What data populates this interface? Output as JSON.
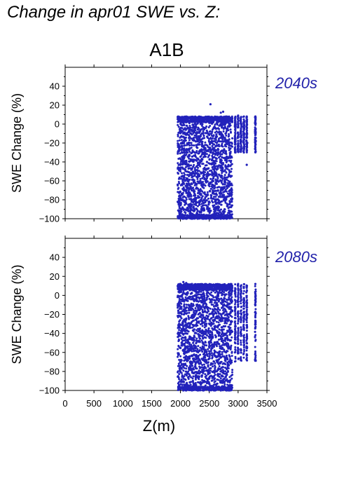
{
  "title": "Change in apr01 SWE vs. Z:",
  "scenario": "A1B",
  "colors": {
    "points": "#2222bb",
    "period_label": "#2222aa",
    "axis": "#000000"
  },
  "chart_data": [
    {
      "type": "scatter",
      "period": "2040s",
      "ylabel": "SWE Change (%)",
      "xlim": [
        0,
        3500
      ],
      "ylim": [
        -100,
        60
      ],
      "yticks": [
        -100,
        -80,
        -60,
        -40,
        -20,
        0,
        20,
        40
      ],
      "x_range_of_points": [
        1950,
        3300
      ],
      "points": [
        [
          1960,
          8
        ],
        [
          1980,
          7
        ],
        [
          2000,
          6
        ],
        [
          2020,
          5
        ],
        [
          2050,
          7
        ],
        [
          2100,
          8
        ],
        [
          2200,
          6
        ],
        [
          2300,
          7
        ],
        [
          2400,
          6
        ],
        [
          2500,
          5
        ],
        [
          2600,
          6
        ],
        [
          2700,
          12
        ],
        [
          2800,
          8
        ],
        [
          2900,
          6
        ],
        [
          3000,
          9
        ],
        [
          3100,
          8
        ],
        [
          3150,
          8
        ],
        [
          3300,
          8
        ],
        [
          2520,
          21
        ],
        [
          2740,
          13
        ],
        [
          1970,
          -72
        ],
        [
          1990,
          -80
        ],
        [
          2010,
          -90
        ],
        [
          2040,
          -100
        ],
        [
          2100,
          -100
        ],
        [
          2200,
          -100
        ],
        [
          2300,
          -100
        ],
        [
          2400,
          -100
        ],
        [
          2500,
          -100
        ],
        [
          2600,
          -100
        ],
        [
          2700,
          -100
        ],
        [
          2800,
          -100
        ],
        [
          2850,
          -98
        ],
        [
          2000,
          -48
        ],
        [
          2030,
          -35
        ],
        [
          2060,
          -20
        ],
        [
          2080,
          -60
        ],
        [
          2120,
          -30
        ],
        [
          2150,
          -75
        ],
        [
          2180,
          -10
        ],
        [
          2220,
          -45
        ],
        [
          2260,
          -82
        ],
        [
          2290,
          -25
        ],
        [
          2330,
          -55
        ],
        [
          2360,
          -90
        ],
        [
          2390,
          -15
        ],
        [
          2430,
          -65
        ],
        [
          2460,
          -40
        ],
        [
          2490,
          -85
        ],
        [
          2530,
          -30
        ],
        [
          2560,
          -70
        ],
        [
          2590,
          -50
        ],
        [
          2630,
          -20
        ],
        [
          2660,
          -95
        ],
        [
          2690,
          -60
        ],
        [
          2720,
          -35
        ],
        [
          2750,
          -80
        ],
        [
          2780,
          -45
        ],
        [
          2810,
          -65
        ],
        [
          2840,
          -25
        ],
        [
          2870,
          -55
        ],
        [
          2900,
          -15
        ],
        [
          2950,
          -30
        ],
        [
          3000,
          -25
        ],
        [
          3050,
          -10
        ],
        [
          3100,
          -30
        ],
        [
          3150,
          -43
        ],
        [
          3160,
          -20
        ],
        [
          3300,
          -25
        ]
      ]
    },
    {
      "type": "scatter",
      "period": "2080s",
      "ylabel": "SWE Change (%)",
      "xlabel": "Z(m)",
      "xlim": [
        0,
        3500
      ],
      "xticks": [
        0,
        500,
        1000,
        1500,
        2000,
        2500,
        3000,
        3500
      ],
      "ylim": [
        -100,
        60
      ],
      "yticks": [
        -100,
        -80,
        -60,
        -40,
        -20,
        0,
        20,
        40
      ],
      "x_range_of_points": [
        1950,
        3300
      ],
      "points": [
        [
          1960,
          10
        ],
        [
          2000,
          12
        ],
        [
          2050,
          14
        ],
        [
          2100,
          13
        ],
        [
          2150,
          10
        ],
        [
          2200,
          12
        ],
        [
          2300,
          9
        ],
        [
          2400,
          6
        ],
        [
          2500,
          10
        ],
        [
          2600,
          7
        ],
        [
          2700,
          8
        ],
        [
          2800,
          6
        ],
        [
          2900,
          5
        ],
        [
          3000,
          12
        ],
        [
          3100,
          9
        ],
        [
          3150,
          8
        ],
        [
          3300,
          12
        ],
        [
          1960,
          -85
        ],
        [
          2000,
          -80
        ],
        [
          2020,
          -90
        ],
        [
          2050,
          -100
        ],
        [
          2100,
          -100
        ],
        [
          2200,
          -100
        ],
        [
          2300,
          -100
        ],
        [
          2400,
          -100
        ],
        [
          2500,
          -100
        ],
        [
          2600,
          -100
        ],
        [
          2700,
          -100
        ],
        [
          2800,
          -100
        ],
        [
          2850,
          -100
        ],
        [
          2000,
          -55
        ],
        [
          2030,
          -40
        ],
        [
          2060,
          -20
        ],
        [
          2090,
          -65
        ],
        [
          2120,
          -30
        ],
        [
          2150,
          -78
        ],
        [
          2180,
          -12
        ],
        [
          2220,
          -50
        ],
        [
          2260,
          -85
        ],
        [
          2290,
          -28
        ],
        [
          2330,
          -58
        ],
        [
          2360,
          -92
        ],
        [
          2390,
          -18
        ],
        [
          2430,
          -68
        ],
        [
          2460,
          -42
        ],
        [
          2490,
          -88
        ],
        [
          2530,
          -32
        ],
        [
          2560,
          -72
        ],
        [
          2590,
          -52
        ],
        [
          2630,
          -22
        ],
        [
          2660,
          -96
        ],
        [
          2690,
          -62
        ],
        [
          2720,
          -36
        ],
        [
          2750,
          -82
        ],
        [
          2780,
          -46
        ],
        [
          2810,
          -66
        ],
        [
          2840,
          -26
        ],
        [
          2870,
          -56
        ],
        [
          2900,
          -16
        ],
        [
          2950,
          -33
        ],
        [
          3000,
          -40
        ],
        [
          3050,
          -60
        ],
        [
          3100,
          -35
        ],
        [
          3150,
          -62
        ],
        [
          3160,
          -20
        ],
        [
          3300,
          -30
        ]
      ]
    }
  ]
}
